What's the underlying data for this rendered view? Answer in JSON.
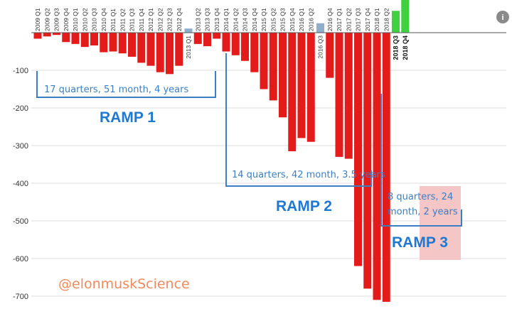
{
  "chart_data": {
    "type": "bar",
    "title": "",
    "xlabel": "",
    "ylabel": "",
    "ylim": [
      -730,
      90
    ],
    "yticks": [
      -100,
      -200,
      -300,
      -400,
      -500,
      -600,
      -700
    ],
    "grid": true,
    "categories": [
      "2009 Q1",
      "2009 Q2",
      "2009 Q3",
      "2009 Q4",
      "2010 Q1",
      "2010 Q2",
      "2010 Q3",
      "2010 Q4",
      "2011 Q1",
      "2011 Q2",
      "2011 Q3",
      "2011 Q4",
      "2012 Q1",
      "2012 Q2",
      "2012 Q3",
      "2012 Q4",
      "2013 Q1",
      "2013 Q2",
      "2013 Q3",
      "2013 Q4",
      "2014 Q1",
      "2014 Q2",
      "2014 Q3",
      "2014 Q4",
      "2015 Q1",
      "2015 Q2",
      "2015 Q3",
      "2015 Q4",
      "2016 Q1",
      "2016 Q2",
      "2016 Q3",
      "2016 Q4",
      "2017 Q1",
      "2017 Q2",
      "2017 Q3",
      "2017 Q4",
      "2018 Q1",
      "2018 Q2",
      "2018 Q3",
      "2018 Q4"
    ],
    "values": [
      -16,
      -10,
      -6,
      -25,
      -30,
      -38,
      -34,
      -52,
      -50,
      -55,
      -64,
      -80,
      -88,
      -105,
      -110,
      -88,
      11,
      -30,
      -36,
      -16,
      -50,
      -60,
      -75,
      -105,
      -150,
      -180,
      -225,
      -315,
      -280,
      -290,
      25,
      -120,
      -330,
      -335,
      -620,
      -680,
      -710,
      -715,
      58,
      105
    ],
    "label_side": [
      "top",
      "top",
      "top",
      "top",
      "top",
      "top",
      "top",
      "top",
      "top",
      "top",
      "top",
      "top",
      "top",
      "top",
      "top",
      "top",
      "bottom",
      "top",
      "top",
      "top",
      "top",
      "top",
      "top",
      "top",
      "top",
      "top",
      "top",
      "top",
      "top",
      "top",
      "bottom",
      "top",
      "top",
      "top",
      "top",
      "top",
      "top",
      "top",
      "bottom",
      "bottom"
    ],
    "bold_labels": [
      "2018 Q3",
      "2018 Q4"
    ],
    "colors": {
      "negative": "#e31b1b",
      "positive": "#3fd13f",
      "small_positive": "#8faecb",
      "grid": "#dddddd",
      "bracket": "#3a7fc4",
      "ramp": "#1f78d1",
      "highlight": "#f5c6c6",
      "watermark": "#f08a5d",
      "info_icon": "#8a8a8a"
    },
    "annotations": [
      {
        "id": "ramp1",
        "text": "17 quarters,  51 month, 4 years",
        "label": "RAMP 1"
      },
      {
        "id": "ramp2",
        "text": "14 quarters,  42 month, 3.5 years",
        "label": "RAMP 2"
      },
      {
        "id": "ramp3",
        "text_lines": [
          "8 quarters,  24",
          "month, 2 years"
        ],
        "label": "RAMP 3"
      }
    ],
    "watermark": "@elonmuskScience",
    "info_icon": "info-icon"
  }
}
